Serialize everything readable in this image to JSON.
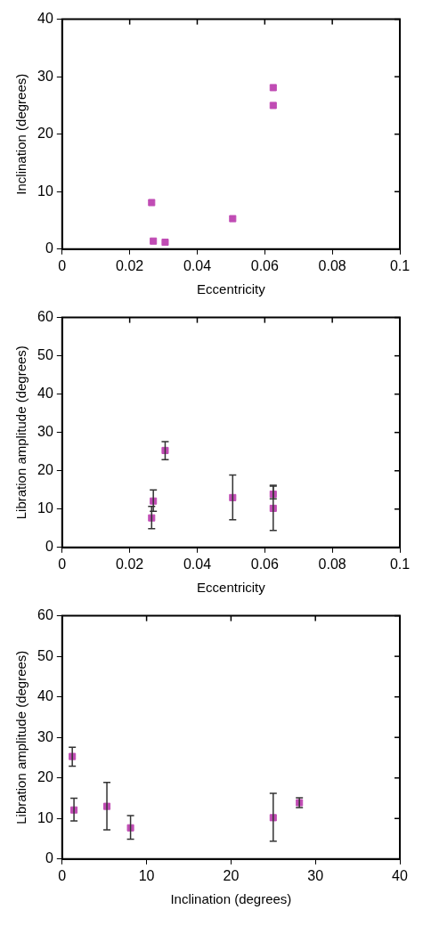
{
  "chart_data": [
    {
      "type": "scatter",
      "xlabel": "Eccentricity",
      "ylabel": "Inclination (degrees)",
      "xlim": [
        0,
        0.1
      ],
      "ylim": [
        0,
        40
      ],
      "xticks": [
        0,
        0.02,
        0.04,
        0.06,
        0.08,
        0.1
      ],
      "yticks": [
        0,
        10,
        20,
        30,
        40
      ],
      "marker": "square",
      "grid": false,
      "series": [
        {
          "color": "#c04cb4",
          "x": [
            0.0265,
            0.027,
            0.0305,
            0.0505,
            0.0625,
            0.0625
          ],
          "values": [
            8.1,
            1.4,
            1.2,
            5.3,
            25,
            28.1
          ]
        }
      ]
    },
    {
      "type": "scatter",
      "xlabel": "Eccentricity",
      "ylabel": "Libration amplitude (degrees)",
      "xlim": [
        0,
        0.1
      ],
      "ylim": [
        0,
        60
      ],
      "xticks": [
        0,
        0.02,
        0.04,
        0.06,
        0.08,
        0.1
      ],
      "yticks": [
        0,
        10,
        20,
        30,
        40,
        50,
        60
      ],
      "marker": "square",
      "grid": false,
      "series": [
        {
          "color": "#c04cb4",
          "x": [
            0.0265,
            0.027,
            0.0305,
            0.0505,
            0.0625,
            0.0625
          ],
          "values": [
            7.7,
            12.1,
            25.3,
            13,
            10.2,
            13.9
          ],
          "errors": [
            [
              4.9,
              10.7
            ],
            [
              9.4,
              15
            ],
            [
              22.9,
              27.6
            ],
            [
              7.2,
              18.9
            ],
            [
              4.4,
              16.2
            ],
            [
              12.7,
              16
            ]
          ]
        }
      ]
    },
    {
      "type": "scatter",
      "xlabel": "Inclination (degrees)",
      "ylabel": "Libration amplitude (degrees)",
      "xlim": [
        0,
        40
      ],
      "ylim": [
        0,
        60
      ],
      "xticks": [
        0,
        10,
        20,
        30,
        40
      ],
      "yticks": [
        0,
        10,
        20,
        30,
        40,
        50,
        60
      ],
      "marker": "square",
      "grid": false,
      "series": [
        {
          "color": "#c04cb4",
          "x": [
            8.1,
            1.4,
            1.2,
            5.3,
            25,
            28.1
          ],
          "values": [
            7.7,
            12.1,
            25.3,
            13,
            10.2,
            13.9
          ],
          "errors": [
            [
              4.9,
              10.7
            ],
            [
              9.4,
              15
            ],
            [
              22.9,
              27.6
            ],
            [
              7.2,
              18.9
            ],
            [
              4.4,
              16.2
            ],
            [
              12.7,
              15.1
            ]
          ]
        }
      ]
    }
  ]
}
